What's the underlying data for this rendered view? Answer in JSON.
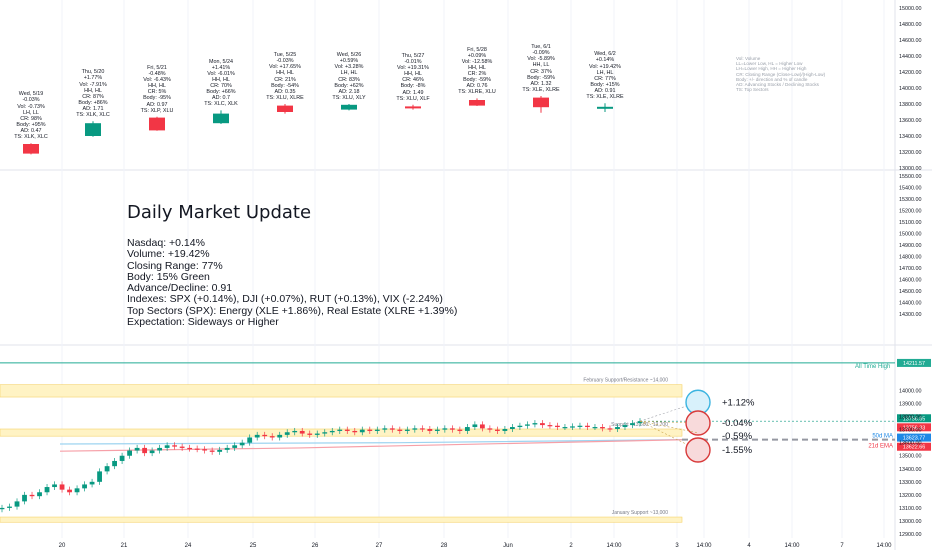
{
  "chart_data": [
    {
      "type": "table",
      "description_rows": "daily recap cards above mini candles",
      "days": [
        {
          "lines": [
            "Wed, 5/19",
            "-0.03%",
            "Vol: -0.73%",
            "LH, LL",
            "CR: 98%",
            "Body: +95%",
            "AD: 0.47",
            "TS: XLK, XLC"
          ],
          "change": "down",
          "open": 13300,
          "close": 13180,
          "high": 13310,
          "low": 13170
        },
        {
          "lines": [
            "Thu, 5/20",
            "+1.77%",
            "Vol: -7.91%",
            "HH, HL",
            "CR: 87%",
            "Body: +86%",
            "AD: 1.71",
            "TS: XLK, XLC"
          ],
          "change": "up",
          "open": 13400,
          "close": 13560,
          "high": 13585,
          "low": 13390
        },
        {
          "lines": [
            "Fri, 5/21",
            "-0.48%",
            "Vol: -6.43%",
            "HH, HL",
            "CR: 5%",
            "Body: -95%",
            "AD: 0.97",
            "TS: XLP, XLU"
          ],
          "change": "down",
          "open": 13630,
          "close": 13470,
          "high": 13640,
          "low": 13465
        },
        {
          "lines": [
            "Mon, 5/24",
            "+1.41%",
            "Vol: -6.01%",
            "HH, HL",
            "CR: 70%",
            "Body: +66%",
            "AD: 0.7",
            "TS: XLC, XLK"
          ],
          "change": "up",
          "open": 13560,
          "close": 13680,
          "high": 13720,
          "low": 13550
        },
        {
          "lines": [
            "Tue, 5/25",
            "-0.03%",
            "Vol: +17.65%",
            "HH, HL",
            "CR: 21%",
            "Body: -54%",
            "AD: 0.35",
            "TS: XLU, XLRE"
          ],
          "change": "down",
          "open": 13780,
          "close": 13700,
          "high": 13800,
          "low": 13680
        },
        {
          "lines": [
            "Wed, 5/26",
            "+0.59%",
            "Vol: +3.28%",
            "LH, HL",
            "CR: 83%",
            "Body: +62%",
            "AD: 2.18",
            "TS: XLU, XLY"
          ],
          "change": "up",
          "open": 13730,
          "close": 13790,
          "high": 13800,
          "low": 13720
        },
        {
          "lines": [
            "Thu, 5/27",
            "-0.01%",
            "Vol: +19.31%",
            "HH, HL",
            "CR: 46%",
            "Body: -8%",
            "AD: 1.49",
            "TS: XLU, XLF"
          ],
          "change": "down",
          "open": 13770,
          "close": 13760,
          "high": 13790,
          "low": 13730
        },
        {
          "lines": [
            "Fri, 5/28",
            "+0.09%",
            "Vol: -12.58%",
            "HH, HL",
            "CR: 2%",
            "Body: -59%",
            "AD: 0.76",
            "TS: XLRE, XLU"
          ],
          "change": "down",
          "open": 13850,
          "close": 13780,
          "high": 13870,
          "low": 13775
        },
        {
          "lines": [
            "Tue, 6/1",
            "-0.09%",
            "Vol: -5.89%",
            "HH, LL",
            "CR: 37%",
            "Body: -59%",
            "AD: 1.32",
            "TS: XLE, XLRE"
          ],
          "change": "down",
          "open": 13880,
          "close": 13760,
          "high": 13900,
          "low": 13690
        },
        {
          "lines": [
            "Wed, 6/2",
            "+0.14%",
            "Vol: +19.42%",
            "LH, HL",
            "CR: 77%",
            "Body: +15%",
            "AD: 0.91",
            "TS: XLE, XLRE"
          ],
          "change": "up",
          "open": 13745,
          "close": 13765,
          "high": 13810,
          "low": 13700
        }
      ],
      "ylim": [
        12900,
        15000
      ],
      "y_ticks": [
        "15000.00",
        "14800.00",
        "14600.00",
        "14400.00",
        "14200.00",
        "14000.00",
        "13800.00",
        "13600.00",
        "13400.00",
        "13200.00",
        "13000.00"
      ],
      "legend_lines": [
        "Vol: Volume",
        "LL=Lower Low, HL = Higher Low",
        "LH=Lower High, HH = Higher High",
        "CR: Closing Range (Close-Low)/(High-Low)",
        "Body: +/- direction and % of candle",
        "AD: Advancing Stocks / Declining Stocks",
        "TS: Top Sectors"
      ]
    },
    {
      "type": "table",
      "title": "Daily Market Update",
      "lines": [
        "Nasdaq: +0.14%",
        "Volume: +19.42%",
        "Closing Range: 77%",
        "Body: 15% Green",
        "Advance/Decline: 0.91",
        "Indexes: SPX (+0.14%), DJI (+0.07%), RUT (+0.13%), VIX (-2.24%)",
        "Top Sectors (SPX): Energy (XLE +1.86%), Real Estate (XLRE +1.39%)",
        "Expectation: Sideways or Higher"
      ],
      "y_ticks": [
        "15500.00",
        "15400.00",
        "15300.00",
        "15200.00",
        "15100.00",
        "15000.00",
        "14900.00",
        "14800.00",
        "14700.00",
        "14600.00",
        "14500.00",
        "14400.00",
        "14300.00"
      ]
    },
    {
      "type": "line",
      "ylim": [
        12900,
        14280
      ],
      "y_ticks": [
        "14000.00",
        "13900.00",
        "13800.00",
        "13700.00",
        "13600.00",
        "13500.00",
        "13400.00",
        "13300.00",
        "13200.00",
        "13100.00",
        "13000.00",
        "12900.00"
      ],
      "x_ticks": [
        "20",
        "21",
        "24",
        "25",
        "26",
        "27",
        "28",
        "Jun",
        "2",
        "14:00",
        "3",
        "14:00",
        "4",
        "14:00",
        "7",
        "14:00"
      ],
      "x_tick_slots": [
        62,
        124,
        188,
        253,
        315,
        379,
        444,
        508,
        571,
        614,
        677,
        704,
        749,
        792,
        842,
        884
      ],
      "series": [
        {
          "name": "",
          "color": "#089981",
          "values": [
            13100,
            13110,
            13150,
            13200,
            13190,
            13220,
            13260,
            13280,
            13240,
            13220,
            13250,
            13280,
            13300,
            13380,
            13420,
            13460,
            13500,
            13540,
            13560,
            13520,
            13540,
            13560,
            13580,
            13570,
            13560,
            13555,
            13550,
            13540,
            13530,
            13545,
            13560,
            13580,
            13600,
            13640,
            13660,
            13650,
            13640,
            13660,
            13680,
            13690,
            13670,
            13660,
            13670,
            13680,
            13690,
            13700,
            13690,
            13680,
            13700,
            13690,
            13700,
            13710,
            13700,
            13690,
            13700,
            13710,
            13705,
            13690,
            13700,
            13710,
            13700,
            13690,
            13720,
            13740,
            13710,
            13700,
            13690,
            13705,
            13720,
            13730,
            13740,
            13750,
            13735,
            13730,
            13720,
            13720,
            13725,
            13730,
            13720,
            13720,
            13710,
            13705,
            13720,
            13735,
            13750,
            13765
          ]
        }
      ],
      "levels": [
        {
          "label": "All Time High",
          "value": 14211.57,
          "badge": "14211.57",
          "color": "#22ab94"
        },
        {
          "label": "February Support/Resistance ~14,000",
          "value": 14000,
          "zone": [
            13950,
            14045
          ]
        },
        {
          "label": "Support ~13,600 - 13,700",
          "value": 13650,
          "zone": [
            13650,
            13705
          ]
        },
        {
          "label": "January Support ~13,000",
          "value": 13000,
          "zone": [
            12990,
            13030
          ]
        },
        {
          "label": "50d MA",
          "value": 13623.77,
          "badge": "13623.77",
          "color": "#1e88e5"
        },
        {
          "label": "21d EMA",
          "value": 13622.66,
          "badge": "13622.66",
          "color": "#f23645"
        }
      ],
      "price_badges": [
        {
          "value": 13756.65,
          "text": "13756.65",
          "color": "#089981"
        },
        {
          "value": 13756.33,
          "text": "13756.33",
          "color": "#f23645"
        }
      ],
      "projections": [
        {
          "label": "+1.12%",
          "target": 13910,
          "color": "#3bb4e0"
        },
        {
          "label": "-0.04%",
          "target": 13751,
          "color": "#d83a3a"
        },
        {
          "label": "-0.59%",
          "target": 13676,
          "color": "#d83a3a"
        },
        {
          "label": "-1.55%",
          "target": 13544,
          "color": "#d83a3a"
        }
      ]
    }
  ]
}
